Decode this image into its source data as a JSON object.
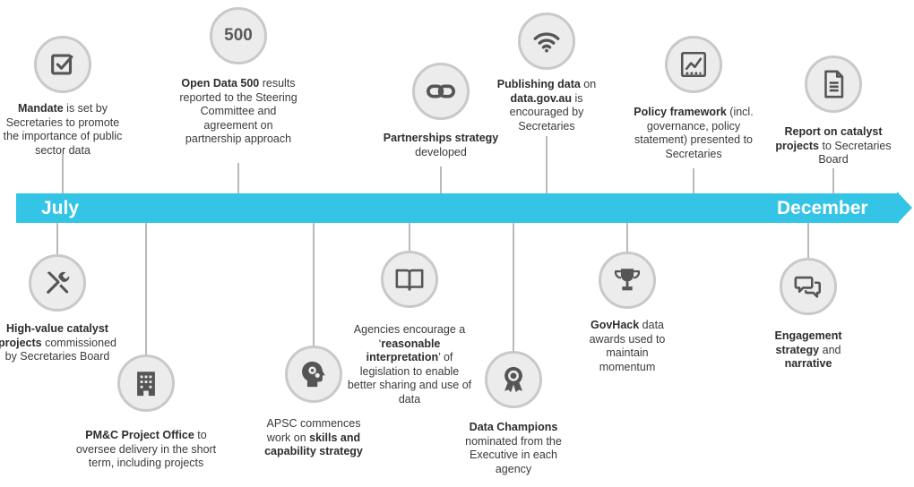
{
  "timeline": {
    "start_label": "July",
    "end_label": "December",
    "band_color": "#33c4e6",
    "events_above": [
      {
        "icon": "checkbox-icon",
        "parts": [
          {
            "b": "Mandate"
          },
          {
            "t": " is set by Secretaries to promote the importance of public sector data"
          }
        ]
      },
      {
        "icon_text": "500",
        "parts": [
          {
            "b": "Open Data 500"
          },
          {
            "t": " results reported to the Steering Committee and agreement on partnership approach"
          }
        ]
      },
      {
        "icon": "chain-link-icon",
        "parts": [
          {
            "b": "Partnerships strategy"
          },
          {
            "t": " developed"
          }
        ]
      },
      {
        "icon": "wifi-icon",
        "parts": [
          {
            "b": "Publishing data"
          },
          {
            "t": " on "
          },
          {
            "b": "data.gov.au"
          },
          {
            "t": " is encouraged by Secretaries"
          }
        ]
      },
      {
        "icon": "chart-icon",
        "parts": [
          {
            "b": "Policy framework"
          },
          {
            "t": " (incl. governance, policy statement) presented to Secretaries"
          }
        ]
      },
      {
        "icon": "document-icon",
        "parts": [
          {
            "b": "Report on catalyst projects"
          },
          {
            "t": " to Secretaries Board"
          }
        ]
      }
    ],
    "events_below": [
      {
        "icon": "tools-icon",
        "parts": [
          {
            "b": "High-value catalyst projects"
          },
          {
            "t": " commissioned by Secretaries Board"
          }
        ]
      },
      {
        "icon": "building-icon",
        "parts": [
          {
            "b": "PM&C Project Office"
          },
          {
            "t": " to oversee delivery in the short term, including projects"
          }
        ]
      },
      {
        "icon": "head-gears-icon",
        "parts": [
          {
            "t": "APSC commences work on "
          },
          {
            "b": "skills and capability strategy"
          }
        ]
      },
      {
        "icon": "book-icon",
        "parts": [
          {
            "t": "Agencies encourage a ‘"
          },
          {
            "b": "reasonable interpretation"
          },
          {
            "t": "’ of legislation to enable better sharing and use of data"
          }
        ]
      },
      {
        "icon": "medal-icon",
        "parts": [
          {
            "b": "Data Champions"
          },
          {
            "t": " nominated from the Executive in each agency"
          }
        ]
      },
      {
        "icon": "trophy-icon",
        "parts": [
          {
            "b": "GovHack"
          },
          {
            "t": " data awards used to maintain momentum"
          }
        ]
      },
      {
        "icon": "speech-bubbles-icon",
        "parts": [
          {
            "b": "Engagement strategy"
          },
          {
            "t": " and "
          },
          {
            "b": "narrative"
          }
        ]
      }
    ]
  }
}
